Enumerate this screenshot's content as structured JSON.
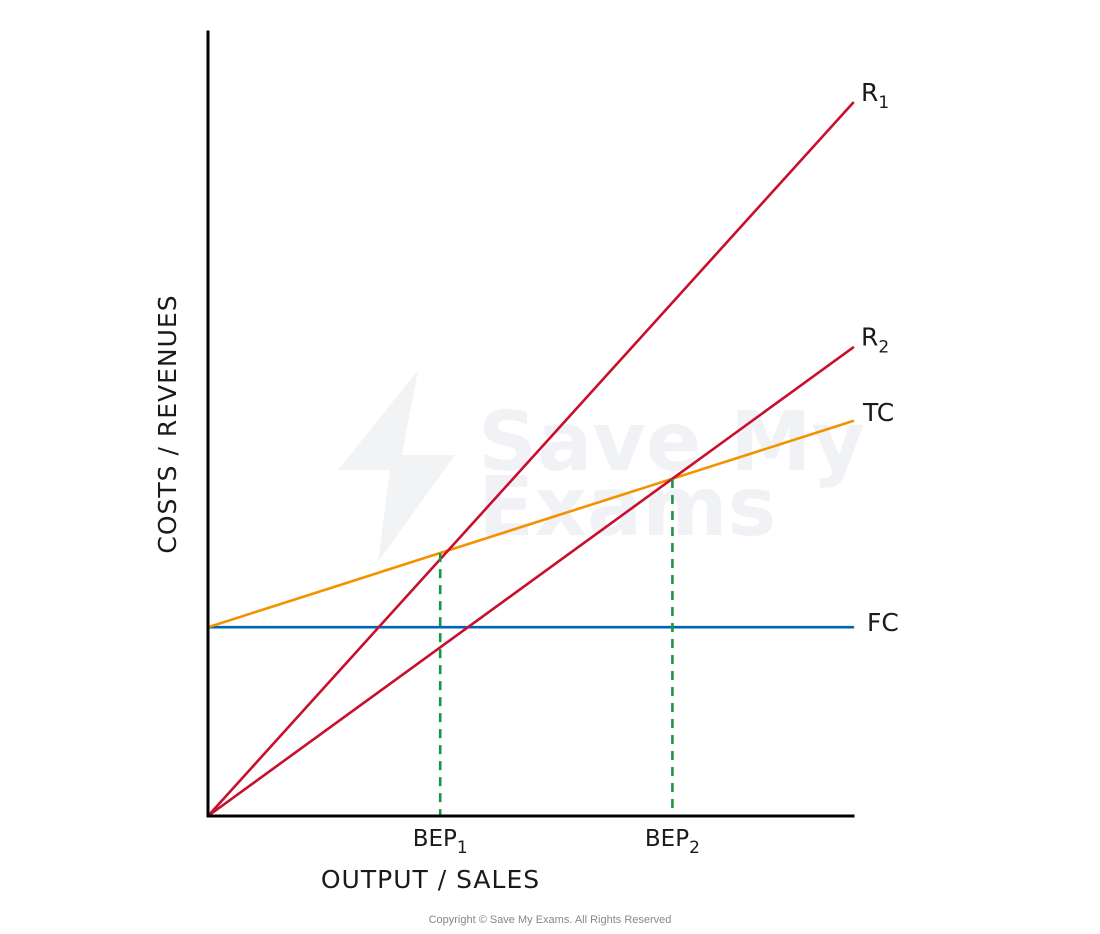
{
  "colors": {
    "axis": "#000000",
    "revenue": "#c8102e",
    "total_cost": "#f39200",
    "fixed_cost": "#0066b3",
    "break_even_guide": "#1a9641",
    "watermark": "#cfd3dc"
  },
  "watermark": {
    "lines": [
      "Save My",
      "Exams"
    ]
  },
  "copyright": "Copyright © Save My Exams. All Rights Reserved",
  "chart_data": {
    "type": "line",
    "xlabel": "OUTPUT / SALES",
    "ylabel": "COSTS / REVENUES",
    "xlim": [
      0,
      100
    ],
    "ylim": [
      0,
      120
    ],
    "grid": false,
    "x_ticks": [
      {
        "x": 36,
        "label": "BEP",
        "sub": "1"
      },
      {
        "x": 72,
        "label": "BEP",
        "sub": "2"
      }
    ],
    "series": [
      {
        "name": "R",
        "sub": "1",
        "key": "r1",
        "color": "#c8102e",
        "x": [
          0,
          100
        ],
        "y": [
          0,
          102
        ]
      },
      {
        "name": "R",
        "sub": "2",
        "key": "r2",
        "color": "#c8102e",
        "x": [
          0,
          100
        ],
        "y": [
          0,
          67
        ]
      },
      {
        "name": "TC",
        "sub": "",
        "key": "tc",
        "color": "#f39200",
        "x": [
          0,
          100
        ],
        "y": [
          27,
          56.5
        ]
      },
      {
        "name": "FC",
        "sub": "",
        "key": "fc",
        "color": "#0066b3",
        "x": [
          0,
          100
        ],
        "y": [
          27,
          27
        ]
      }
    ],
    "break_even_points": [
      {
        "label": "BEP1",
        "x": 36,
        "y": 37.6
      },
      {
        "label": "BEP2",
        "x": 72,
        "y": 48.2
      }
    ]
  }
}
